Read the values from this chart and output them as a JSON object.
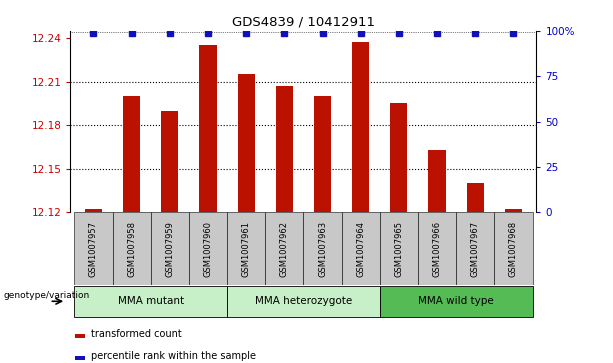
{
  "title": "GDS4839 / 10412911",
  "samples": [
    "GSM1007957",
    "GSM1007958",
    "GSM1007959",
    "GSM1007960",
    "GSM1007961",
    "GSM1007962",
    "GSM1007963",
    "GSM1007964",
    "GSM1007965",
    "GSM1007966",
    "GSM1007967",
    "GSM1007968"
  ],
  "bar_values": [
    12.122,
    12.2,
    12.19,
    12.235,
    12.215,
    12.207,
    12.2,
    12.237,
    12.195,
    12.163,
    12.14,
    12.122
  ],
  "percentile_values": [
    100,
    100,
    100,
    100,
    100,
    100,
    100,
    100,
    100,
    100,
    100,
    100
  ],
  "ymin": 12.12,
  "ymax": 12.245,
  "yticks": [
    12.12,
    12.15,
    12.18,
    12.21,
    12.24
  ],
  "y2ticks": [
    0,
    25,
    50,
    75,
    100
  ],
  "y2labels": [
    "0",
    "25",
    "50",
    "75",
    "100%"
  ],
  "bar_color": "#bb1100",
  "percentile_color": "#1111bb",
  "groups": [
    {
      "label": "MMA mutant",
      "start": 0,
      "end": 3,
      "color": "#c8f0c8"
    },
    {
      "label": "MMA heterozygote",
      "start": 4,
      "end": 7,
      "color": "#c8f0c8"
    },
    {
      "label": "MMA wild type",
      "start": 8,
      "end": 11,
      "color": "#55bb55"
    }
  ],
  "group_box_color": "#c8c8c8",
  "legend_items": [
    {
      "label": "transformed count",
      "color": "#bb1100"
    },
    {
      "label": "percentile rank within the sample",
      "color": "#1111bb"
    }
  ],
  "genotype_label": "genotype/variation",
  "ytick_color": "#cc0000",
  "y2tick_color": "#0000cc"
}
